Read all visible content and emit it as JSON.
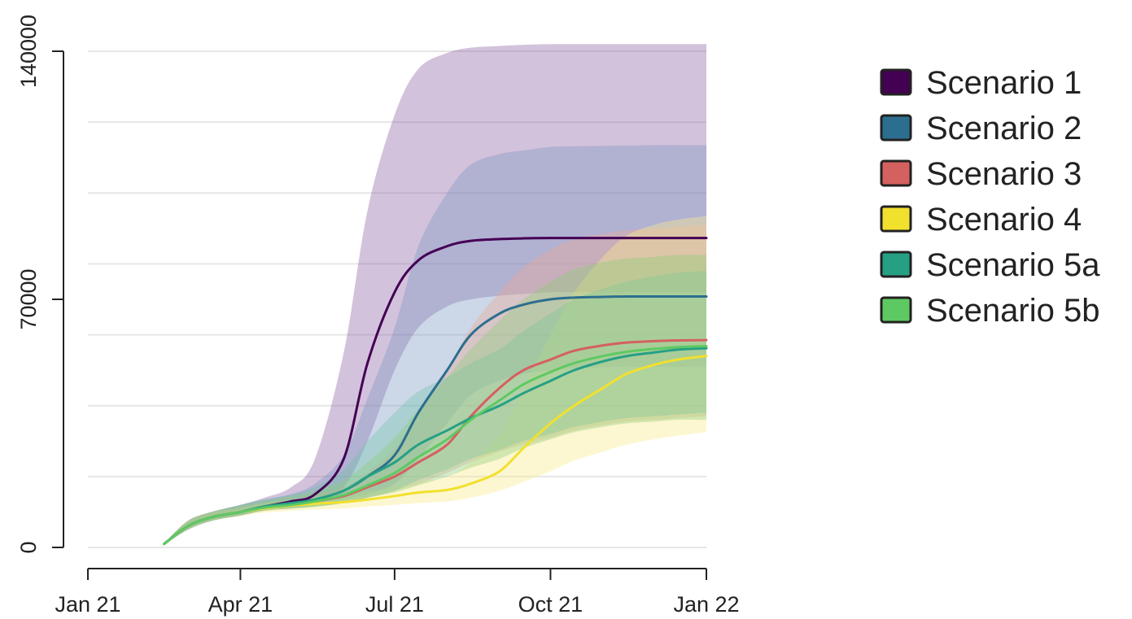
{
  "chart_data": {
    "type": "line",
    "title": "",
    "xlabel": "",
    "ylabel": "",
    "x_axis": {
      "min": "2021-01-01",
      "max": "2022-01-01",
      "ticks": [
        {
          "date": "2021-01-01",
          "label": "Jan 21"
        },
        {
          "date": "2021-04-01",
          "label": "Apr 21"
        },
        {
          "date": "2021-07-01",
          "label": "Jul 21"
        },
        {
          "date": "2021-10-01",
          "label": "Oct 21"
        },
        {
          "date": "2022-01-01",
          "label": "Jan 22"
        }
      ]
    },
    "y_axis": {
      "min": 0,
      "max": 140000,
      "ticks": [
        {
          "value": 0,
          "label": "0"
        },
        {
          "value": 70000,
          "label": "70000"
        },
        {
          "value": 140000,
          "label": "140000"
        }
      ],
      "gridlines": [
        0,
        20000,
        40000,
        60000,
        80000,
        100000,
        120000,
        140000
      ]
    },
    "grid": true,
    "legend_position": "right",
    "x": [
      "2021-02-15",
      "2021-03-01",
      "2021-03-15",
      "2021-04-01",
      "2021-04-15",
      "2021-05-01",
      "2021-05-15",
      "2021-06-01",
      "2021-06-15",
      "2021-07-01",
      "2021-07-15",
      "2021-08-01",
      "2021-08-15",
      "2021-09-01",
      "2021-09-15",
      "2021-10-01",
      "2021-10-15",
      "2021-11-01",
      "2021-11-15",
      "2021-12-01",
      "2021-12-15",
      "2022-01-01"
    ],
    "series": [
      {
        "name": "Scenario 1",
        "color": "#440154",
        "fill": "rgba(140,95,160,0.38)",
        "values": [
          1000,
          6000,
          8500,
          10000,
          11500,
          13000,
          15000,
          25000,
          52000,
          72000,
          81000,
          85000,
          86500,
          87000,
          87200,
          87300,
          87300,
          87300,
          87300,
          87300,
          87300,
          87300
        ],
        "lower": [
          800,
          5000,
          7500,
          9000,
          10500,
          11500,
          13000,
          17000,
          30000,
          50000,
          62000,
          68000,
          70000,
          71000,
          71500,
          72000,
          72000,
          72000,
          72000,
          72000,
          72000,
          72000
        ],
        "upper": [
          1200,
          7500,
          10000,
          12000,
          14000,
          17000,
          25000,
          55000,
          95000,
          122000,
          135000,
          139500,
          141000,
          141500,
          141800,
          142000,
          142000,
          142000,
          142000,
          142000,
          142000,
          142000
        ]
      },
      {
        "name": "Scenario 2",
        "color": "#2c6e8f",
        "fill": "rgba(120,150,195,0.38)",
        "values": [
          1000,
          6000,
          8500,
          10000,
          11500,
          12500,
          13500,
          16000,
          20000,
          26000,
          38000,
          50000,
          60000,
          66000,
          68500,
          70000,
          70500,
          70700,
          70800,
          70800,
          70800,
          70800
        ],
        "lower": [
          800,
          5000,
          7500,
          9000,
          10500,
          11000,
          12000,
          13500,
          15000,
          18000,
          25000,
          35000,
          43000,
          47000,
          49000,
          50000,
          50500,
          50800,
          51000,
          51000,
          51000,
          51000
        ],
        "upper": [
          1200,
          7500,
          10000,
          12000,
          13500,
          15000,
          18000,
          26000,
          42000,
          62000,
          85000,
          100000,
          108000,
          111000,
          112000,
          113000,
          113200,
          113300,
          113400,
          113500,
          113500,
          113500
        ]
      },
      {
        "name": "Scenario 3",
        "color": "#d56060",
        "fill": "rgba(235,170,150,0.40)",
        "values": [
          1000,
          6000,
          8500,
          10000,
          11200,
          12000,
          13000,
          14500,
          17000,
          20000,
          24000,
          29000,
          37000,
          45000,
          50000,
          53000,
          55500,
          57000,
          57800,
          58200,
          58400,
          58500
        ],
        "lower": [
          800,
          5000,
          7500,
          9000,
          10300,
          11000,
          11500,
          12500,
          14000,
          16000,
          18000,
          21000,
          24000,
          27000,
          29000,
          31000,
          33000,
          34500,
          35500,
          36000,
          36500,
          37000
        ],
        "upper": [
          1200,
          7500,
          10000,
          11500,
          12500,
          13500,
          15000,
          17000,
          21000,
          28000,
          38000,
          50000,
          62000,
          72000,
          79000,
          84000,
          87000,
          88500,
          89500,
          90000,
          90500,
          91000
        ]
      },
      {
        "name": "Scenario 4",
        "color": "#f2e02e",
        "fill": "rgba(250,235,140,0.40)",
        "values": [
          1000,
          6000,
          8500,
          10000,
          11000,
          11800,
          12300,
          12800,
          13500,
          14500,
          15500,
          16200,
          18000,
          21500,
          28000,
          35000,
          40000,
          45000,
          49000,
          51500,
          53000,
          54000
        ],
        "lower": [
          800,
          5000,
          7500,
          8800,
          9800,
          10300,
          10700,
          11000,
          11500,
          12000,
          12500,
          13000,
          14000,
          16000,
          18500,
          21500,
          24500,
          27000,
          29000,
          30500,
          31500,
          32500
        ],
        "upper": [
          1200,
          7500,
          9800,
          11200,
          12500,
          13500,
          14000,
          14800,
          15800,
          17000,
          18500,
          20000,
          24000,
          32000,
          45000,
          60000,
          72000,
          82000,
          88000,
          91000,
          92500,
          93500
        ]
      },
      {
        "name": "Scenario 5a",
        "color": "#26a085",
        "fill": "rgba(110,195,170,0.35)",
        "values": [
          1000,
          6000,
          8500,
          10000,
          11500,
          12500,
          13500,
          16000,
          20000,
          24000,
          29000,
          33000,
          36500,
          40000,
          43500,
          47000,
          50000,
          52500,
          54000,
          55000,
          55800,
          56200
        ],
        "lower": [
          800,
          5000,
          7500,
          9000,
          10500,
          11000,
          11500,
          12500,
          14000,
          16000,
          19000,
          22000,
          25000,
          27500,
          30000,
          32000,
          34000,
          35500,
          36500,
          37000,
          37500,
          38000
        ],
        "upper": [
          1200,
          7500,
          10000,
          12000,
          13500,
          15000,
          17000,
          22000,
          30000,
          38000,
          44000,
          48000,
          52000,
          56000,
          61000,
          66000,
          70000,
          73000,
          75000,
          76500,
          77500,
          78000
        ]
      },
      {
        "name": "Scenario 5b",
        "color": "#5ec962",
        "fill": "rgba(140,205,120,0.38)",
        "values": [
          1000,
          6000,
          8500,
          10000,
          11200,
          12000,
          13000,
          14800,
          17500,
          21000,
          25500,
          30500,
          36000,
          41500,
          46000,
          49500,
          52000,
          54000,
          55200,
          56000,
          56500,
          56800
        ],
        "lower": [
          800,
          5000,
          7500,
          9000,
          10300,
          11000,
          11500,
          12500,
          14000,
          15500,
          17500,
          20000,
          22500,
          25000,
          28000,
          30500,
          32500,
          34000,
          35000,
          35500,
          36000,
          36000
        ],
        "upper": [
          1200,
          7500,
          10000,
          11800,
          13200,
          14500,
          16000,
          19000,
          24000,
          31000,
          39000,
          48000,
          56000,
          64000,
          70000,
          75000,
          78500,
          80500,
          81500,
          82000,
          82500,
          82500
        ]
      }
    ]
  }
}
